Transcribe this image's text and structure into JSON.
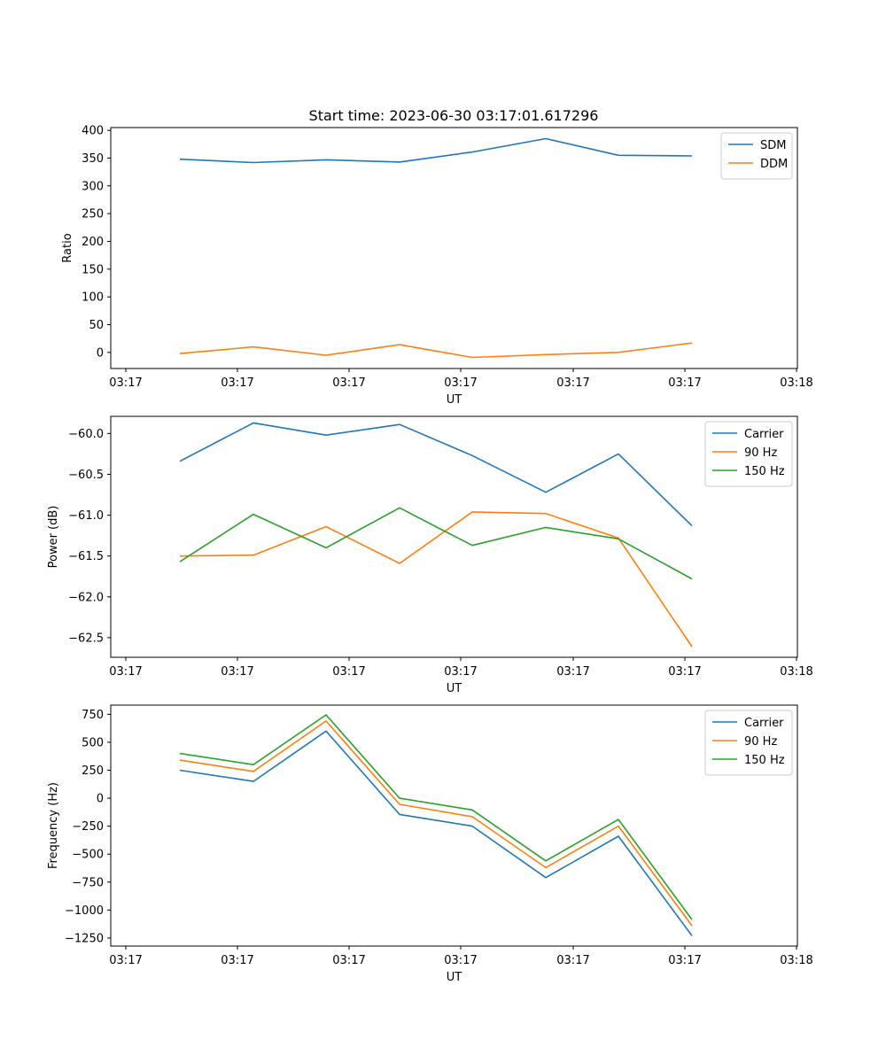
{
  "figure": {
    "title": "Start time: 2023-06-30 03:17:01.617296"
  },
  "chart_data": [
    {
      "type": "line",
      "xlabel": "UT",
      "ylabel": "Ratio",
      "x_tick_labels": [
        "03:17",
        "03:17",
        "03:17",
        "03:17",
        "03:17",
        "03:17",
        "03:18"
      ],
      "y_ticks": [
        0,
        50,
        100,
        150,
        200,
        250,
        300,
        350,
        400
      ],
      "ylim": [
        -29,
        405
      ],
      "grid": false,
      "legend_position": "top-right",
      "series": [
        {
          "name": "SDM",
          "color": "#1f77b4",
          "values": [
            348,
            342,
            347,
            343,
            361,
            385,
            355,
            354
          ]
        },
        {
          "name": "DDM",
          "color": "#ff7f0e",
          "values": [
            -2,
            10,
            -5,
            14,
            -9,
            -4,
            0,
            17
          ]
        }
      ]
    },
    {
      "type": "line",
      "xlabel": "UT",
      "ylabel": "Power (dB)",
      "x_tick_labels": [
        "03:17",
        "03:17",
        "03:17",
        "03:17",
        "03:17",
        "03:17",
        "03:18"
      ],
      "y_ticks": [
        -60.0,
        -60.5,
        -61.0,
        -61.5,
        -62.0,
        -62.5
      ],
      "y_tick_labels": [
        "−60.0",
        "−60.5",
        "−61.0",
        "−61.5",
        "−62.0",
        "−62.5"
      ],
      "ylim": [
        -62.74,
        -59.79
      ],
      "grid": false,
      "legend_position": "top-right",
      "series": [
        {
          "name": "Carrier",
          "color": "#1f77b4",
          "values": [
            -60.34,
            -59.87,
            -60.02,
            -59.89,
            -60.27,
            -60.72,
            -60.25,
            -61.13
          ]
        },
        {
          "name": "90 Hz",
          "color": "#ff7f0e",
          "values": [
            -61.5,
            -61.49,
            -61.14,
            -61.59,
            -60.96,
            -60.98,
            -61.28,
            -62.61
          ]
        },
        {
          "name": "150 Hz",
          "color": "#2ca02c",
          "values": [
            -61.57,
            -60.99,
            -61.4,
            -60.91,
            -61.37,
            -61.15,
            -61.29,
            -61.78
          ]
        }
      ]
    },
    {
      "type": "line",
      "xlabel": "UT",
      "ylabel": "Frequency (Hz)",
      "x_tick_labels": [
        "03:17",
        "03:17",
        "03:17",
        "03:17",
        "03:17",
        "03:17",
        "03:18"
      ],
      "y_ticks": [
        750,
        500,
        250,
        0,
        -250,
        -500,
        -750,
        -1000,
        -1250
      ],
      "y_tick_labels": [
        "750",
        "500",
        "250",
        "0",
        "−250",
        "−500",
        "−750",
        "−1000",
        "−1250"
      ],
      "ylim": [
        -1322,
        832
      ],
      "grid": false,
      "legend_position": "top-right",
      "series": [
        {
          "name": "Carrier",
          "color": "#1f77b4",
          "values": [
            250,
            150,
            600,
            -145,
            -250,
            -710,
            -340,
            -1230
          ]
        },
        {
          "name": "90 Hz",
          "color": "#ff7f0e",
          "values": [
            340,
            240,
            690,
            -55,
            -165,
            -620,
            -250,
            -1140
          ]
        },
        {
          "name": "150 Hz",
          "color": "#2ca02c",
          "values": [
            400,
            300,
            745,
            0,
            -105,
            -560,
            -190,
            -1085
          ]
        }
      ]
    }
  ]
}
